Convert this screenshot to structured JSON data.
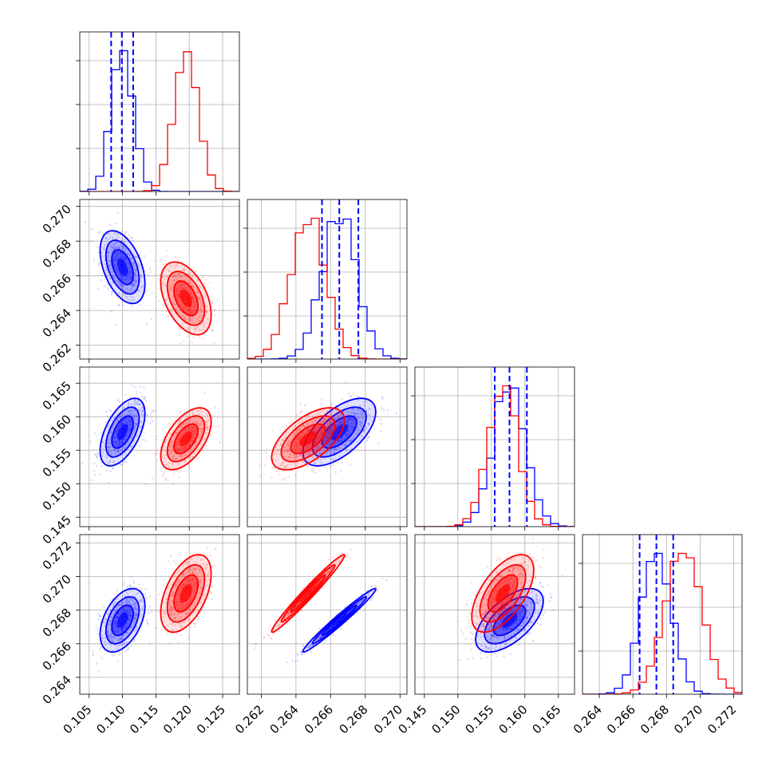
{
  "chart_data": {
    "type": "scatter",
    "subtype": "corner-plot",
    "title": "",
    "grid": true,
    "legend": "none",
    "series": [
      {
        "color": "#0000ff",
        "mean": [
          0.11,
          0.2665,
          0.1577,
          0.2674
        ],
        "sd": [
          0.0016,
          0.001,
          0.0024,
          0.0009
        ],
        "quantiles": [
          [
            0.1083,
            0.1099,
            0.1116
          ],
          [
            0.2655,
            0.2665,
            0.2676
          ],
          [
            0.1555,
            0.1577,
            0.1603
          ],
          [
            0.2664,
            0.2674,
            0.2684
          ]
        ]
      },
      {
        "color": "#ff0000",
        "mean": [
          0.1195,
          0.2647,
          0.1567,
          0.269
        ],
        "sd": [
          0.0018,
          0.001,
          0.0022,
          0.0011
        ]
      }
    ],
    "correlations": {
      "blue": {
        "0-1": -0.45,
        "0-2": 0.55,
        "0-3": 0.45,
        "1-2": 0.6,
        "1-3": 0.98,
        "2-3": 0.6
      },
      "red": {
        "0-1": -0.45,
        "0-2": 0.55,
        "0-3": 0.5,
        "1-2": 0.6,
        "1-3": 0.98,
        "2-3": 0.6
      }
    },
    "axes": [
      {
        "range": [
          0.1036,
          0.1275
        ],
        "ticks": [
          "0.105",
          "0.110",
          "0.115",
          "0.120",
          "0.125"
        ]
      },
      {
        "range": [
          0.2612,
          0.2704
        ],
        "ticks": [
          "0.262",
          "0.264",
          "0.266",
          "0.268",
          "0.270"
        ]
      },
      {
        "range": [
          0.1436,
          0.1674
        ],
        "ticks": [
          "0.145",
          "0.150",
          "0.155",
          "0.160",
          "0.165"
        ]
      },
      {
        "range": [
          0.263,
          0.2725
        ],
        "ticks": [
          "0.264",
          "0.266",
          "0.268",
          "0.270",
          "0.272"
        ]
      }
    ]
  }
}
